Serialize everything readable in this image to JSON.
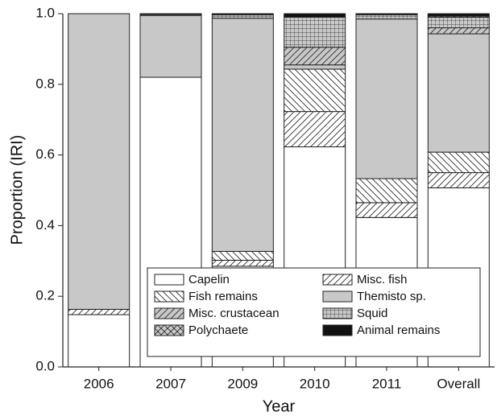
{
  "chart_data": {
    "type": "stacked-bar",
    "x_label": "Year",
    "y_label": "Proportion (IRI)",
    "categories": [
      "2006",
      "2007",
      "2009",
      "2010",
      "2011",
      "Overall"
    ],
    "series": [
      {
        "name": "Capelin",
        "color": "#ffffff",
        "pattern": "none",
        "values": [
          0.148,
          0.82,
          0.285,
          0.623,
          0.423,
          0.507
        ]
      },
      {
        "name": "Misc. fish",
        "color": "#ffffff",
        "pattern": "diag-up",
        "values": [
          0.015,
          0,
          0.017,
          0.1,
          0.042,
          0.043
        ]
      },
      {
        "name": "Fish remains",
        "color": "#ffffff",
        "pattern": "diag-down",
        "values": [
          0,
          0,
          0.025,
          0.12,
          0.068,
          0.058
        ]
      },
      {
        "name": "Themisto sp.",
        "color": "#c8c8c8",
        "pattern": "none",
        "values": [
          0.837,
          0.175,
          0.66,
          0.012,
          0.452,
          0.335
        ]
      },
      {
        "name": "Misc. crustacean",
        "color": "#c8c8c8",
        "pattern": "diag-up",
        "values": [
          0,
          0,
          0,
          0.05,
          0,
          0.017
        ]
      },
      {
        "name": "Squid",
        "color": "#c8c8c8",
        "pattern": "grid",
        "values": [
          0,
          0.003,
          0.01,
          0.085,
          0.012,
          0.03
        ]
      },
      {
        "name": "Polychaete",
        "color": "#c8c8c8",
        "pattern": "cross",
        "values": [
          0,
          0,
          0,
          0,
          0,
          0.003
        ]
      },
      {
        "name": "Animal remains",
        "color": "#111111",
        "pattern": "none",
        "values": [
          0,
          0.002,
          0.003,
          0.01,
          0.003,
          0.007
        ]
      }
    ],
    "ylim": [
      0,
      1
    ],
    "yticks": [
      {
        "value": 0,
        "label": "0.0"
      },
      0.2,
      0.4,
      0.6,
      0.8,
      {
        "value": 1,
        "label": "1.0"
      }
    ]
  }
}
